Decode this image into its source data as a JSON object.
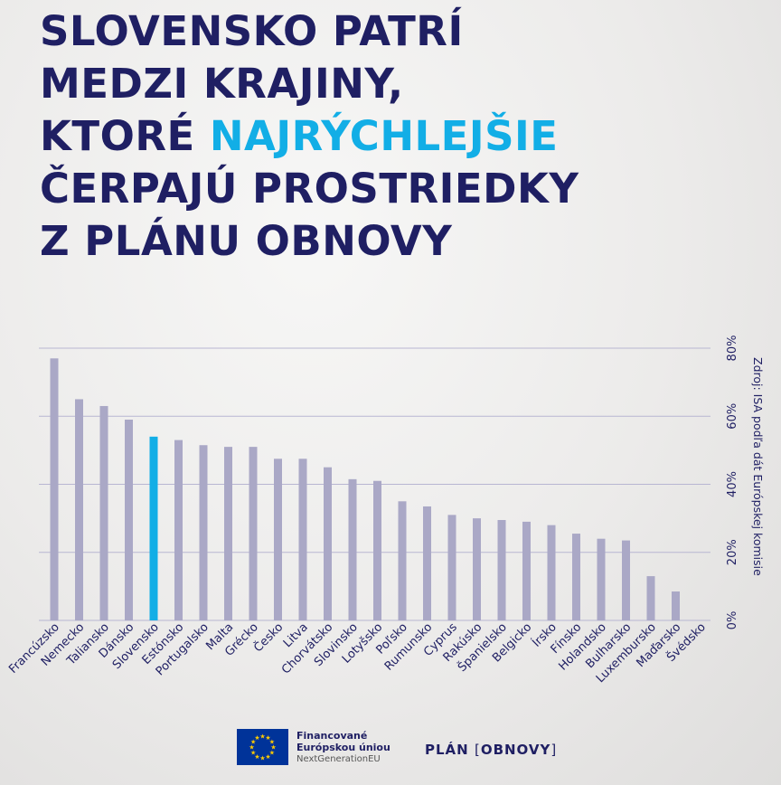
{
  "headline": {
    "line1": "SLOVENSKO PATRÍ",
    "line2": "MEDZI KRAJINY,",
    "line3_pre": "KTORÉ ",
    "line3_highlight": "NAJRÝCHLEJŠIE",
    "line4": "ČERPAJÚ PROSTRIEDKY",
    "line5": "Z PLÁNU OBNOVY"
  },
  "colors": {
    "title": "#1f1f63",
    "highlight": "#12aee6",
    "bar": "#aaa8c6",
    "bar_highlight": "#12aee6",
    "grid": "#b8b6d2"
  },
  "source_note": "Zdroj: ISA podľa dát Európskej komisie",
  "footer": {
    "eu_line1": "Financované",
    "eu_line2": "Európskou úniou",
    "eu_line3": "NextGenerationEU",
    "plan_left": "PLÁN",
    "plan_right": "OBNOVY",
    "flag_icon": "eu-flag-icon"
  },
  "chart_data": {
    "type": "bar",
    "categories": [
      "Francúzsko",
      "Nemecko",
      "Taliansko",
      "Dánsko",
      "Slovensko",
      "Estónsko",
      "Portugalsko",
      "Malta",
      "Grécko",
      "Česko",
      "Litva",
      "Chorvátsko",
      "Slovinsko",
      "Lotyšsko",
      "Poľsko",
      "Rumunsko",
      "Cyprus",
      "Rakúsko",
      "Španielsko",
      "Belgicko",
      "Írsko",
      "Fínsko",
      "Holandsko",
      "Bulharsko",
      "Luxembursko",
      "Maďarsko",
      "Švédsko"
    ],
    "values": [
      77,
      65,
      63,
      59,
      54,
      53,
      51.5,
      51,
      51,
      47.5,
      47.5,
      45,
      41.5,
      41,
      35,
      33.5,
      31,
      30,
      29.5,
      29,
      28,
      25.5,
      24,
      23.5,
      13,
      8.5,
      0
    ],
    "highlight": "Slovensko",
    "y_ticks": [
      "0%",
      "20%",
      "40%",
      "60%",
      "80%"
    ],
    "ylim": [
      0,
      80
    ],
    "grid": true,
    "axis_position": "right"
  }
}
